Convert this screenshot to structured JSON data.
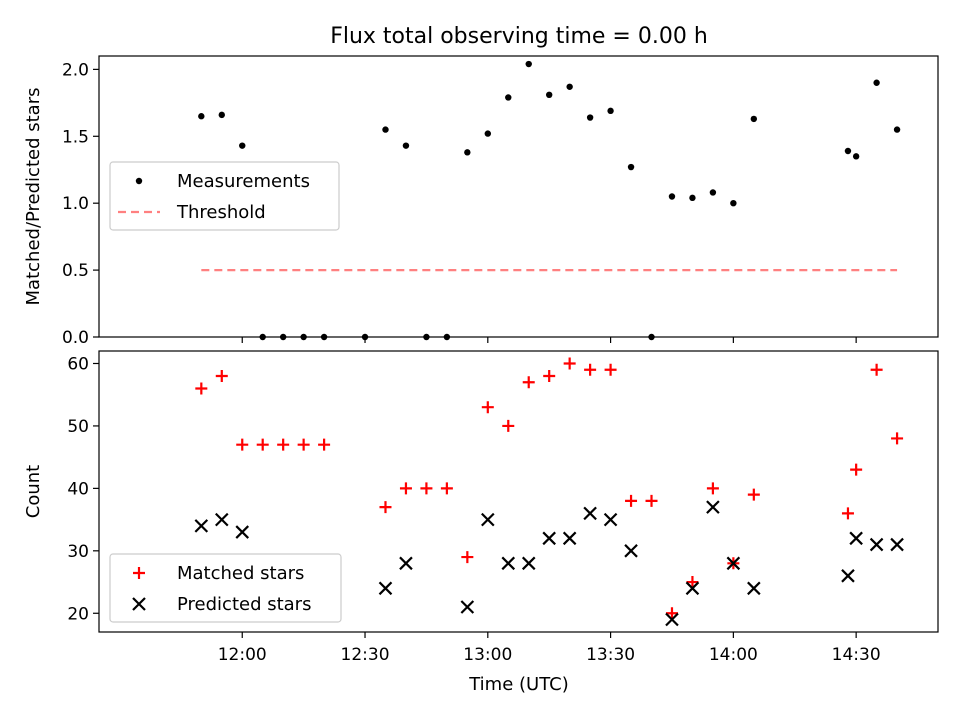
{
  "title": "Flux total observing time = 0.00 h",
  "xlabel": "Time (UTC)",
  "colors": {
    "measurement": "#000000",
    "threshold": "#ff8080",
    "matched": "#ff0000",
    "predicted": "#000000"
  },
  "chart_data": [
    {
      "type": "scatter",
      "ylabel": "Matched/Predicted stars",
      "xlim": [
        "11:25",
        "14:50"
      ],
      "ylim": [
        0,
        2.1
      ],
      "xticks": [
        "12:00",
        "12:30",
        "13:00",
        "13:30",
        "14:00",
        "14:30"
      ],
      "yticks": [
        "0.0",
        "0.5",
        "1.0",
        "1.5",
        "2.0"
      ],
      "legend_position": "center-left",
      "series": [
        {
          "name": "Measurements",
          "marker": "dot",
          "x": [
            "11:50",
            "11:55",
            "12:00",
            "12:05",
            "12:10",
            "12:15",
            "12:20",
            "12:30",
            "12:35",
            "12:40",
            "12:45",
            "12:50",
            "12:55",
            "13:00",
            "13:05",
            "13:10",
            "13:15",
            "13:20",
            "13:25",
            "13:30",
            "13:35",
            "13:40",
            "13:45",
            "13:50",
            "13:55",
            "14:00",
            "14:05",
            "14:10",
            "14:15",
            "14:28",
            "14:30",
            "14:35",
            "14:40"
          ],
          "y": [
            1.65,
            1.66,
            1.43,
            0,
            0,
            0,
            0,
            0,
            1.55,
            1.43,
            0,
            0,
            1.38,
            1.52,
            1.79,
            2.04,
            1.81,
            1.87,
            1.64,
            1.69,
            1.27,
            0,
            1.05,
            1.04,
            1.08,
            1.0,
            1.63,
            null,
            null,
            1.39,
            1.35,
            1.9,
            1.55
          ]
        },
        {
          "name": "Threshold",
          "style": "dashed",
          "x": [
            "11:50",
            "14:40"
          ],
          "y": [
            0.5,
            0.5
          ]
        }
      ]
    },
    {
      "type": "scatter",
      "ylabel": "Count",
      "xlim": [
        "11:25",
        "14:50"
      ],
      "ylim": [
        17,
        62
      ],
      "xticks": [
        "12:00",
        "12:30",
        "13:00",
        "13:30",
        "14:00",
        "14:30"
      ],
      "yticks": [
        "20",
        "30",
        "40",
        "50",
        "60"
      ],
      "legend_position": "lower-left",
      "series": [
        {
          "name": "Matched stars",
          "marker": "plus",
          "x": [
            "11:50",
            "11:55",
            "12:00",
            "12:05",
            "12:10",
            "12:15",
            "12:20",
            "12:35",
            "12:40",
            "12:45",
            "12:50",
            "12:55",
            "13:00",
            "13:05",
            "13:10",
            "13:15",
            "13:20",
            "13:25",
            "13:30",
            "13:35",
            "13:40",
            "13:45",
            "13:50",
            "13:55",
            "14:00",
            "14:05",
            "14:28",
            "14:30",
            "14:35",
            "14:40"
          ],
          "y": [
            56,
            58,
            47,
            47,
            47,
            47,
            47,
            37,
            40,
            40,
            40,
            29,
            53,
            50,
            57,
            58,
            60,
            59,
            59,
            38,
            38,
            20,
            25,
            40,
            28,
            39,
            36,
            43,
            59,
            48
          ]
        },
        {
          "name": "Predicted stars",
          "marker": "x",
          "x": [
            "11:50",
            "11:55",
            "12:00",
            "12:35",
            "12:40",
            "12:55",
            "13:00",
            "13:05",
            "13:10",
            "13:15",
            "13:20",
            "13:25",
            "13:30",
            "13:35",
            "13:45",
            "13:50",
            "13:55",
            "14:00",
            "14:05",
            "14:28",
            "14:30",
            "14:35",
            "14:40"
          ],
          "y": [
            34,
            35,
            33,
            24,
            28,
            21,
            35,
            28,
            28,
            32,
            32,
            36,
            35,
            30,
            19,
            24,
            37,
            28,
            24,
            26,
            32,
            31,
            31
          ]
        }
      ]
    }
  ]
}
